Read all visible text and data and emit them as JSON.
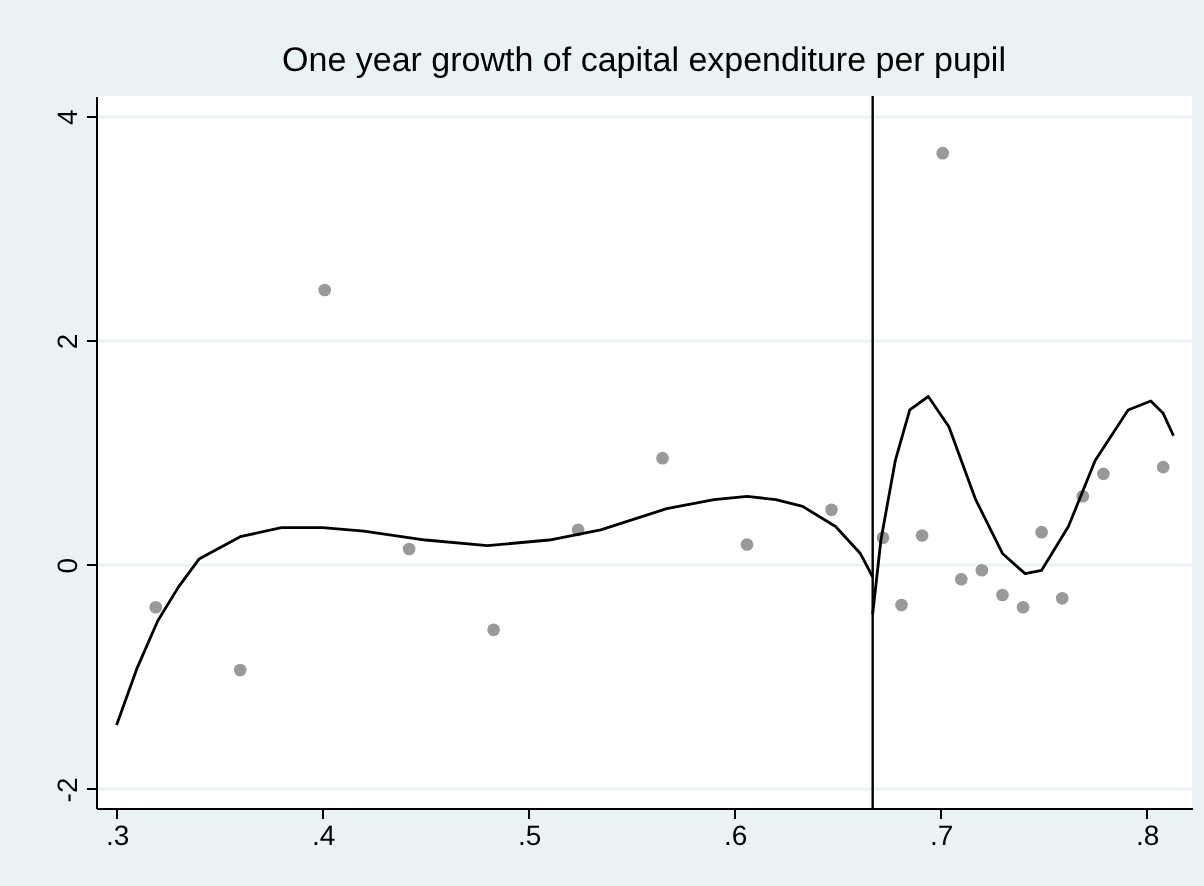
{
  "chart_data": {
    "type": "scatter",
    "title": "One year growth of capital expenditure per pupil",
    "series": [
      {
        "color": "#999999",
        "marker": "circle",
        "x": [
          0.319,
          0.36,
          0.401,
          0.442,
          0.483,
          0.524,
          0.565,
          0.606,
          0.647,
          0.672,
          0.681,
          0.691,
          0.701,
          0.71,
          0.72,
          0.73,
          0.74,
          0.749,
          0.759,
          0.769,
          0.779,
          0.808
        ],
        "values": [
          -0.38,
          -0.94,
          2.45,
          0.14,
          -0.58,
          0.31,
          0.95,
          0.18,
          0.49,
          0.24,
          -0.36,
          0.26,
          3.67,
          -0.13,
          -0.05,
          -0.27,
          -0.38,
          0.29,
          -0.3,
          0.61,
          0.81,
          0.87
        ]
      },
      {
        "type": "line",
        "color": "#000000",
        "x": [
          0.3,
          0.31,
          0.32,
          0.33,
          0.34,
          0.36,
          0.38,
          0.4,
          0.42,
          0.45,
          0.48,
          0.51,
          0.535,
          0.567,
          0.59,
          0.606,
          0.62,
          0.633,
          0.649,
          0.661,
          0.667
        ],
        "values": [
          -1.43,
          -0.92,
          -0.5,
          -0.2,
          0.05,
          0.25,
          0.33,
          0.33,
          0.3,
          0.22,
          0.17,
          0.22,
          0.31,
          0.5,
          0.58,
          0.61,
          0.58,
          0.52,
          0.34,
          0.1,
          -0.11
        ]
      },
      {
        "type": "line",
        "color": "#000000",
        "x": [
          0.667,
          0.671,
          0.678,
          0.685,
          0.694,
          0.704,
          0.717,
          0.73,
          0.741,
          0.749,
          0.762,
          0.775,
          0.791,
          0.802,
          0.808,
          0.813
        ],
        "values": [
          -0.44,
          0.22,
          0.93,
          1.38,
          1.5,
          1.23,
          0.58,
          0.1,
          -0.08,
          -0.05,
          0.34,
          0.93,
          1.38,
          1.46,
          1.35,
          1.15
        ]
      }
    ],
    "xlim": [
      0.29,
      0.822
    ],
    "xticks": [
      {
        "value": 0.3,
        "label": ".3"
      },
      {
        "value": 0.4,
        "label": ".4"
      },
      {
        "value": 0.5,
        "label": ".5"
      },
      {
        "value": 0.6,
        "label": ".6"
      },
      {
        "value": 0.7,
        "label": ".7"
      },
      {
        "value": 0.8,
        "label": ".8"
      }
    ],
    "ylim": [
      -2.17,
      4.18
    ],
    "yticks": [
      -2,
      0,
      2,
      4
    ],
    "ref_lines": [
      {
        "axis": "x",
        "value": 0.667,
        "color": "#000000"
      }
    ],
    "grid": "y"
  }
}
